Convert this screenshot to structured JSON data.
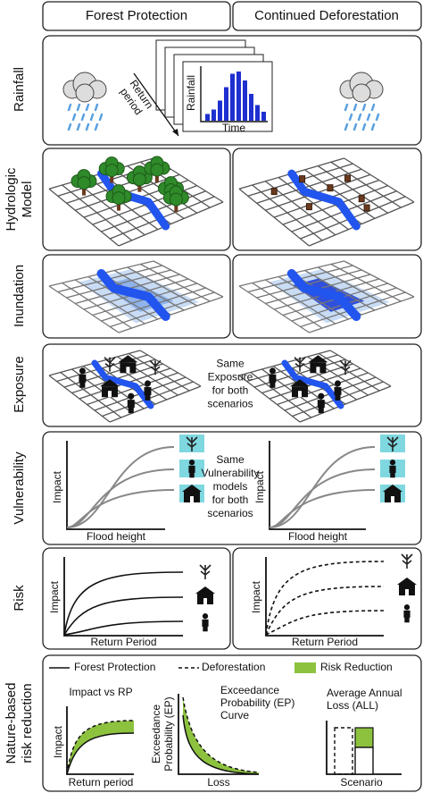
{
  "header": {
    "columns": [
      "Forest Protection",
      "Continued Deforestation"
    ]
  },
  "row_labels": [
    [
      "Rainfall"
    ],
    [
      "Hydrologic",
      "Model"
    ],
    [
      "Inundation"
    ],
    [
      "Exposure"
    ],
    [
      "Vulnerability"
    ],
    [
      "Risk"
    ],
    [
      "Nature-based",
      "risk reduction"
    ]
  ],
  "rainfall": {
    "arrow_label": [
      "Return",
      "period"
    ],
    "y_label": "Rainfall",
    "x_label": "Time"
  },
  "exposure": {
    "note": [
      "Same",
      "Exposure",
      "for both",
      "scenarios"
    ]
  },
  "vulnerability": {
    "note": [
      "Same",
      "Vulnerability",
      "models",
      "for both",
      "scenarios"
    ],
    "y_label": "Impact",
    "x_label": "Flood height"
  },
  "risk": {
    "y_label": "Impact",
    "x_label": "Return Period"
  },
  "nature_based": {
    "legend": [
      "Forest Protection",
      "Deforestation",
      "Risk Reduction"
    ],
    "panels": [
      {
        "title": [
          "Impact vs RP"
        ],
        "y_label": [
          "Impact"
        ],
        "x_label": "Return period"
      },
      {
        "title": [
          "Exceedance",
          "Probability (EP)",
          "Curve"
        ],
        "y_label": [
          "Exceedance",
          "Probability (EP)"
        ],
        "x_label": "Loss"
      },
      {
        "title": [
          "Average Annual",
          "Loss (ALL)"
        ],
        "x_label": "Scenario"
      }
    ]
  }
}
